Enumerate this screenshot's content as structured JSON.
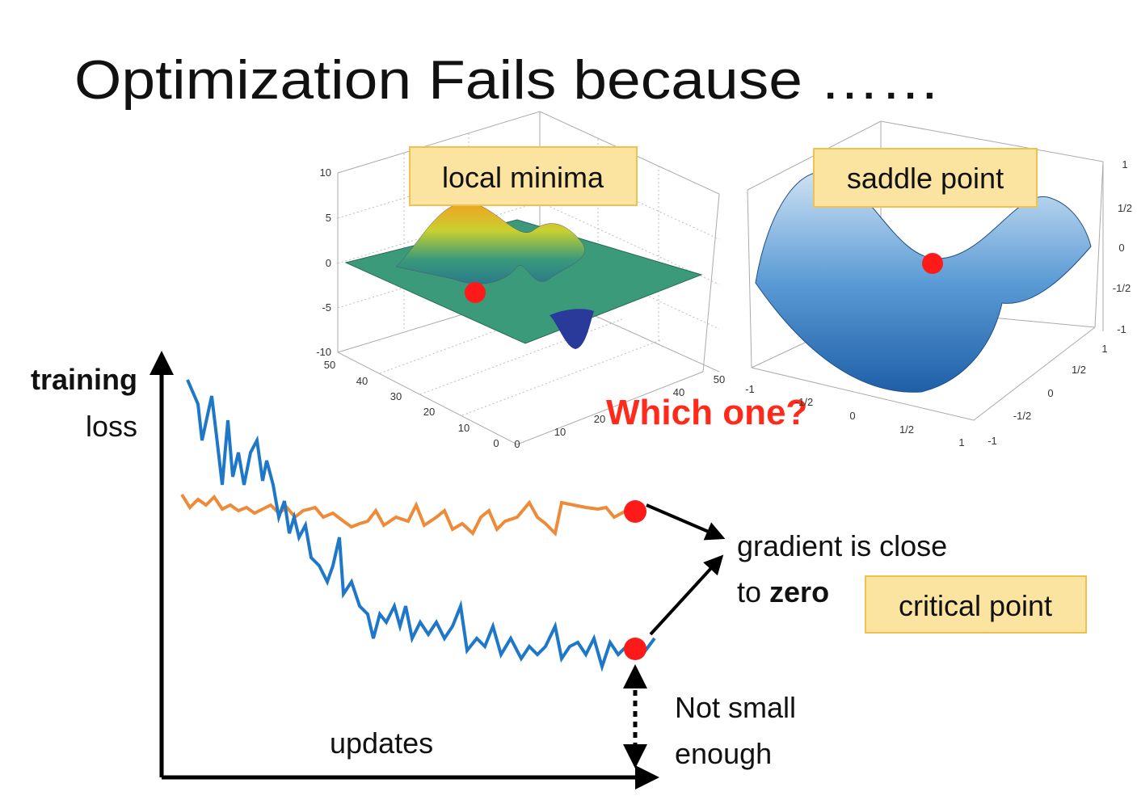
{
  "title": "Optimization Fails because ……",
  "local_minima_plot": {
    "label": "local minima",
    "z_ticks": [
      "10",
      "5",
      "0",
      "-5",
      "-10"
    ],
    "y_ticks": [
      "50",
      "40",
      "30",
      "20",
      "10",
      "0"
    ],
    "x_ticks": [
      "0",
      "10",
      "20",
      "40",
      "50"
    ]
  },
  "saddle_point_plot": {
    "label": "saddle point",
    "z_ticks": [
      "1",
      "1/2",
      "0",
      "-1/2",
      "-1"
    ],
    "y_ticks": [
      "1",
      "1/2",
      "0",
      "-1/2",
      "-1"
    ],
    "x_ticks": [
      "-1",
      "-1/2",
      "0",
      "1/2",
      "1"
    ]
  },
  "question": "Which one?",
  "loss_chart": {
    "y_label": [
      "training",
      "loss"
    ],
    "x_label": "updates"
  },
  "annotations": {
    "gradient": [
      "gradient is close",
      "to",
      "zero"
    ],
    "critical_point": "critical point",
    "not_small": [
      "Not small",
      "enough"
    ]
  }
}
